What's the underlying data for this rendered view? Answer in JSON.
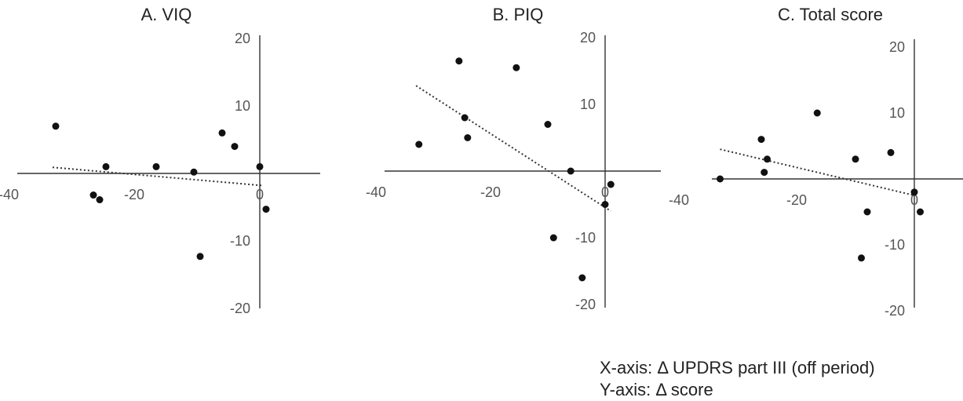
{
  "caption": {
    "x_axis": "X-axis: Δ UPDRS part III (off period)",
    "y_axis": "Y-axis: Δ score"
  },
  "chart_data": [
    {
      "type": "scatter",
      "title": "A. VIQ",
      "xlim": [
        -40,
        10
      ],
      "ylim": [
        -20,
        20
      ],
      "x_ticks": [
        -40,
        -20,
        0
      ],
      "y_ticks": [
        20,
        10,
        -10,
        -20
      ],
      "points": [
        {
          "x": -32.5,
          "y": 7
        },
        {
          "x": -26.5,
          "y": -3.2
        },
        {
          "x": -25.5,
          "y": -3.9
        },
        {
          "x": -24.5,
          "y": 1
        },
        {
          "x": -16.5,
          "y": 1
        },
        {
          "x": -10.5,
          "y": 0.2
        },
        {
          "x": -9.5,
          "y": -12.3
        },
        {
          "x": -6,
          "y": 6
        },
        {
          "x": -4,
          "y": 4
        },
        {
          "x": 0,
          "y": 1
        },
        {
          "x": 1,
          "y": -5.3
        }
      ],
      "trendline": {
        "x": [
          -33,
          0.5
        ],
        "y": [
          0.9,
          -1.8
        ]
      },
      "grid": false
    },
    {
      "type": "scatter",
      "title": "B. PIQ",
      "xlim": [
        -40,
        10
      ],
      "ylim": [
        -20,
        20
      ],
      "x_ticks": [
        -40,
        -20,
        0
      ],
      "y_ticks": [
        20,
        10,
        -10,
        -20
      ],
      "points": [
        {
          "x": -32.5,
          "y": 4
        },
        {
          "x": -25.5,
          "y": 16.5
        },
        {
          "x": -24.5,
          "y": 8
        },
        {
          "x": -24,
          "y": 5
        },
        {
          "x": -15.5,
          "y": 15.5
        },
        {
          "x": -10,
          "y": 7
        },
        {
          "x": -9,
          "y": -10
        },
        {
          "x": -6,
          "y": 0
        },
        {
          "x": -4,
          "y": -16
        },
        {
          "x": 0,
          "y": -5
        },
        {
          "x": 1,
          "y": -2
        }
      ],
      "trendline": {
        "x": [
          -33,
          1
        ],
        "y": [
          12.8,
          -6
        ]
      },
      "grid": false
    },
    {
      "type": "scatter",
      "title": "C. Total score",
      "xlim": [
        -40,
        10
      ],
      "ylim": [
        -20,
        20
      ],
      "x_ticks": [
        -40,
        -20,
        0
      ],
      "y_ticks": [
        20,
        10,
        -10,
        -20
      ],
      "points": [
        {
          "x": -33,
          "y": 0
        },
        {
          "x": -26,
          "y": 6
        },
        {
          "x": -25.5,
          "y": 1
        },
        {
          "x": -25,
          "y": 3
        },
        {
          "x": -16.5,
          "y": 10
        },
        {
          "x": -10,
          "y": 3
        },
        {
          "x": -9,
          "y": -12
        },
        {
          "x": -8,
          "y": -5
        },
        {
          "x": -4,
          "y": 4
        },
        {
          "x": 0,
          "y": -2
        },
        {
          "x": 1,
          "y": -5
        }
      ],
      "trendline": {
        "x": [
          -33,
          0
        ],
        "y": [
          4.5,
          -2.5
        ]
      },
      "grid": false
    }
  ]
}
